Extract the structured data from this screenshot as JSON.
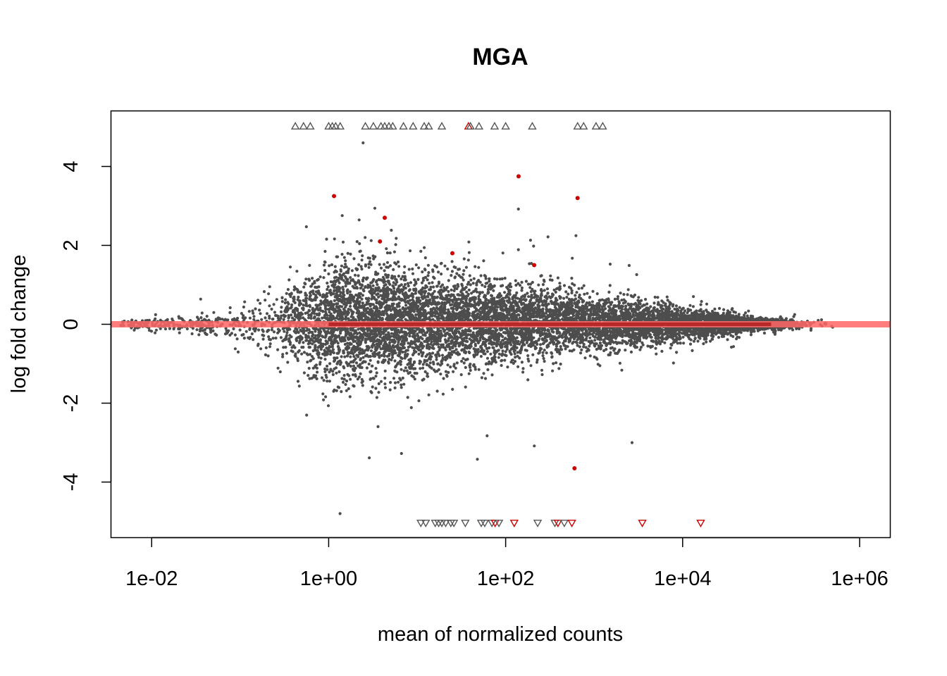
{
  "chart_data": {
    "type": "scatter",
    "title": "MGA",
    "xlabel": "mean of normalized counts",
    "ylabel": "log fold change",
    "x_scale": "log10",
    "xlim": [
      0.0035,
      2200000
    ],
    "ylim": [
      -5.4,
      5.4
    ],
    "x_ticks": [
      {
        "value": 0.01,
        "label": "1e-02"
      },
      {
        "value": 1,
        "label": "1e+00"
      },
      {
        "value": 100,
        "label": "1e+02"
      },
      {
        "value": 10000,
        "label": "1e+04"
      },
      {
        "value": 1000000,
        "label": "1e+06"
      }
    ],
    "y_ticks": [
      {
        "value": -4,
        "label": "-4"
      },
      {
        "value": -2,
        "label": "-2"
      },
      {
        "value": 0,
        "label": "0"
      },
      {
        "value": 2,
        "label": "2"
      },
      {
        "value": 4,
        "label": "4"
      }
    ],
    "grid": false,
    "legend": "none",
    "colors": {
      "points": "#4d4d4d",
      "significant": "#cc0000",
      "zero_line": "#ff6666"
    },
    "reference_line": {
      "y": 0
    },
    "significant_points": [
      {
        "x": 1.15,
        "y": 3.25
      },
      {
        "x": 4.3,
        "y": 2.7
      },
      {
        "x": 3.8,
        "y": 2.1
      },
      {
        "x": 25,
        "y": 1.8
      },
      {
        "x": 140,
        "y": 3.75
      },
      {
        "x": 650,
        "y": 3.2
      },
      {
        "x": 210,
        "y": 1.5
      },
      {
        "x": 600,
        "y": -3.65
      }
    ],
    "clipped_up": [
      {
        "x": 0.42,
        "y": 5,
        "sig": false
      },
      {
        "x": 0.52,
        "y": 5,
        "sig": false
      },
      {
        "x": 0.62,
        "y": 5,
        "sig": false
      },
      {
        "x": 1.0,
        "y": 5,
        "sig": false
      },
      {
        "x": 1.1,
        "y": 5,
        "sig": false
      },
      {
        "x": 1.2,
        "y": 5,
        "sig": false
      },
      {
        "x": 1.35,
        "y": 5,
        "sig": false
      },
      {
        "x": 2.6,
        "y": 5,
        "sig": false
      },
      {
        "x": 3.2,
        "y": 5,
        "sig": false
      },
      {
        "x": 3.9,
        "y": 5,
        "sig": false
      },
      {
        "x": 4.3,
        "y": 5,
        "sig": false
      },
      {
        "x": 4.8,
        "y": 5,
        "sig": false
      },
      {
        "x": 5.3,
        "y": 5,
        "sig": false
      },
      {
        "x": 7.0,
        "y": 5,
        "sig": false
      },
      {
        "x": 9.0,
        "y": 5,
        "sig": false
      },
      {
        "x": 12,
        "y": 5,
        "sig": false
      },
      {
        "x": 13.5,
        "y": 5,
        "sig": false
      },
      {
        "x": 19,
        "y": 5,
        "sig": false
      },
      {
        "x": 38,
        "y": 5,
        "sig": true
      },
      {
        "x": 40,
        "y": 5,
        "sig": false
      },
      {
        "x": 50,
        "y": 5,
        "sig": false
      },
      {
        "x": 75,
        "y": 5,
        "sig": false
      },
      {
        "x": 100,
        "y": 5,
        "sig": false
      },
      {
        "x": 200,
        "y": 5,
        "sig": false
      },
      {
        "x": 650,
        "y": 5,
        "sig": false
      },
      {
        "x": 760,
        "y": 5,
        "sig": false
      },
      {
        "x": 1050,
        "y": 5,
        "sig": false
      },
      {
        "x": 1250,
        "y": 5,
        "sig": false
      }
    ],
    "clipped_down": [
      {
        "x": 11,
        "y": -5,
        "sig": false
      },
      {
        "x": 12.5,
        "y": -5,
        "sig": false
      },
      {
        "x": 16,
        "y": -5,
        "sig": false
      },
      {
        "x": 17.5,
        "y": -5,
        "sig": false
      },
      {
        "x": 19,
        "y": -5,
        "sig": false
      },
      {
        "x": 21,
        "y": -5,
        "sig": false
      },
      {
        "x": 24,
        "y": -5,
        "sig": false
      },
      {
        "x": 26,
        "y": -5,
        "sig": false
      },
      {
        "x": 35,
        "y": -5,
        "sig": false
      },
      {
        "x": 53,
        "y": -5,
        "sig": false
      },
      {
        "x": 58,
        "y": -5,
        "sig": false
      },
      {
        "x": 70,
        "y": -5,
        "sig": false
      },
      {
        "x": 76,
        "y": -5,
        "sig": true
      },
      {
        "x": 84,
        "y": -5,
        "sig": false
      },
      {
        "x": 125,
        "y": -5,
        "sig": true
      },
      {
        "x": 230,
        "y": -5,
        "sig": false
      },
      {
        "x": 360,
        "y": -5,
        "sig": false
      },
      {
        "x": 390,
        "y": -5,
        "sig": true
      },
      {
        "x": 460,
        "y": -5,
        "sig": false
      },
      {
        "x": 560,
        "y": -5,
        "sig": true
      },
      {
        "x": 3500,
        "y": -5,
        "sig": true
      },
      {
        "x": 16000,
        "y": -5,
        "sig": true
      }
    ],
    "distribution_note": "Approximately 40,000 gray points forming a funnel: wide spread (±2) at low counts (~0.5–10), narrowing to ±0.3 at high counts (1e+04–1e+05); scattered outliers."
  }
}
